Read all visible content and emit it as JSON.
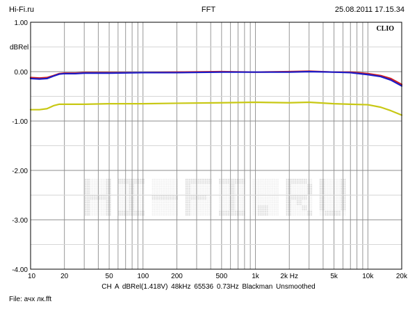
{
  "header": {
    "left": "Hi-Fi.ru",
    "center": "FFT",
    "right": "25.08.2011 17.15.34"
  },
  "brand_label": "CLIO",
  "watermark_text": "HI-FI.RU",
  "footer": {
    "status": "CH A   dBRel(1.418V)   48kHz   65536   0.73Hz   Blackman   Unsmoothed",
    "file": "File: ачх лк.fft"
  },
  "chart_data": {
    "type": "line",
    "title": "",
    "xlabel": "",
    "ylabel": "dBRel",
    "x_scale": "log",
    "xlim": [
      10,
      20000
    ],
    "ylim": [
      -4.0,
      1.0
    ],
    "grid": true,
    "x_ticks": [
      {
        "value": 10,
        "label": "10"
      },
      {
        "value": 20,
        "label": "20"
      },
      {
        "value": 50,
        "label": "50"
      },
      {
        "value": 100,
        "label": "100"
      },
      {
        "value": 200,
        "label": "200"
      },
      {
        "value": 500,
        "label": "500"
      },
      {
        "value": 1000,
        "label": "1k"
      },
      {
        "value": 2000,
        "label": "2k Hz"
      },
      {
        "value": 5000,
        "label": "5k"
      },
      {
        "value": 10000,
        "label": "10k"
      },
      {
        "value": 20000,
        "label": "20k"
      }
    ],
    "y_ticks": [
      {
        "value": 1.0,
        "label": "1.00"
      },
      {
        "value": 0.0,
        "label": "0.00"
      },
      {
        "value": -1.0,
        "label": "-1.00"
      },
      {
        "value": -2.0,
        "label": "-2.00"
      },
      {
        "value": -3.0,
        "label": "-3.00"
      },
      {
        "value": -4.0,
        "label": "-4.00"
      }
    ],
    "series": [
      {
        "color": "#d02020",
        "x": [
          10,
          12,
          14,
          16,
          18,
          20,
          25,
          30,
          50,
          100,
          200,
          500,
          1000,
          2000,
          3000,
          5000,
          7000,
          10000,
          13000,
          16000,
          20000
        ],
        "y": [
          -0.12,
          -0.13,
          -0.12,
          -0.08,
          -0.04,
          -0.03,
          -0.03,
          -0.02,
          -0.02,
          -0.02,
          -0.01,
          0.0,
          -0.01,
          0.0,
          0.01,
          -0.01,
          -0.01,
          -0.04,
          -0.08,
          -0.14,
          -0.26
        ]
      },
      {
        "color": "#1c1cc8",
        "x": [
          10,
          12,
          14,
          16,
          18,
          20,
          25,
          30,
          50,
          100,
          200,
          500,
          1000,
          2000,
          3000,
          5000,
          7000,
          10000,
          13000,
          16000,
          20000
        ],
        "y": [
          -0.14,
          -0.15,
          -0.14,
          -0.09,
          -0.05,
          -0.04,
          -0.04,
          -0.03,
          -0.03,
          -0.02,
          -0.02,
          -0.01,
          -0.01,
          -0.01,
          0.0,
          -0.01,
          -0.02,
          -0.06,
          -0.1,
          -0.17,
          -0.29
        ]
      },
      {
        "color": "#c8c814",
        "x": [
          10,
          12,
          14,
          16,
          18,
          20,
          25,
          30,
          50,
          100,
          200,
          500,
          1000,
          2000,
          3000,
          5000,
          7000,
          10000,
          13000,
          16000,
          20000
        ],
        "y": [
          -0.77,
          -0.77,
          -0.75,
          -0.69,
          -0.66,
          -0.66,
          -0.66,
          -0.66,
          -0.65,
          -0.65,
          -0.64,
          -0.63,
          -0.62,
          -0.63,
          -0.62,
          -0.65,
          -0.66,
          -0.67,
          -0.72,
          -0.79,
          -0.88
        ]
      }
    ]
  }
}
